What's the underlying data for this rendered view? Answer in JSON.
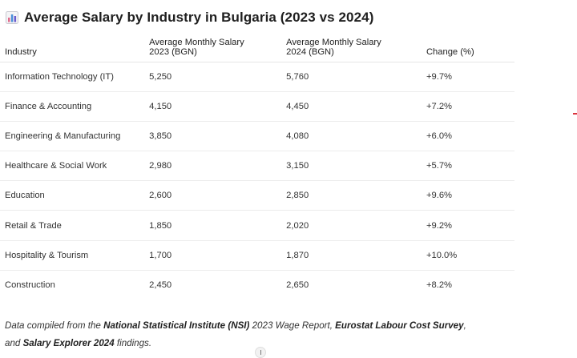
{
  "title": "Average Salary by Industry in Bulgaria (2023 vs 2024)",
  "title_icon": "bar-chart-icon",
  "table": {
    "headers": {
      "industry": "Industry",
      "salary_2023_line1": "Average Monthly Salary",
      "salary_2023_line2": "2023 (BGN)",
      "salary_2024_line1": "Average Monthly Salary",
      "salary_2024_line2": "2024 (BGN)",
      "change": "Change (%)"
    },
    "rows": [
      {
        "industry": "Information Technology (IT)",
        "salary_2023": "5,250",
        "salary_2024": "5,760",
        "change": "+9.7%"
      },
      {
        "industry": "Finance & Accounting",
        "salary_2023": "4,150",
        "salary_2024": "4,450",
        "change": "+7.2%"
      },
      {
        "industry": "Engineering & Manufacturing",
        "salary_2023": "3,850",
        "salary_2024": "4,080",
        "change": "+6.0%"
      },
      {
        "industry": "Healthcare & Social Work",
        "salary_2023": "2,980",
        "salary_2024": "3,150",
        "change": "+5.7%"
      },
      {
        "industry": "Education",
        "salary_2023": "2,600",
        "salary_2024": "2,850",
        "change": "+9.6%"
      },
      {
        "industry": "Retail & Trade",
        "salary_2023": "1,850",
        "salary_2024": "2,020",
        "change": "+9.2%"
      },
      {
        "industry": "Hospitality & Tourism",
        "salary_2023": "1,700",
        "salary_2024": "1,870",
        "change": "+10.0%"
      },
      {
        "industry": "Construction",
        "salary_2023": "2,450",
        "salary_2024": "2,650",
        "change": "+8.2%"
      }
    ]
  },
  "footnote": {
    "part1": "Data compiled from the ",
    "source1": "National Statistical Institute (NSI)",
    "part2": " 2023 Wage Report, ",
    "source2": "Eurostat Labour Cost Survey",
    "part3": ",",
    "part4": "and ",
    "source3": "Salary Explorer 2024",
    "part5": " findings."
  },
  "colors": {
    "icon_bar_1": "#e06a8a",
    "icon_bar_2": "#4a8fd8",
    "icon_bar_3": "#6a5acd",
    "accent_red": "#d9363e"
  }
}
